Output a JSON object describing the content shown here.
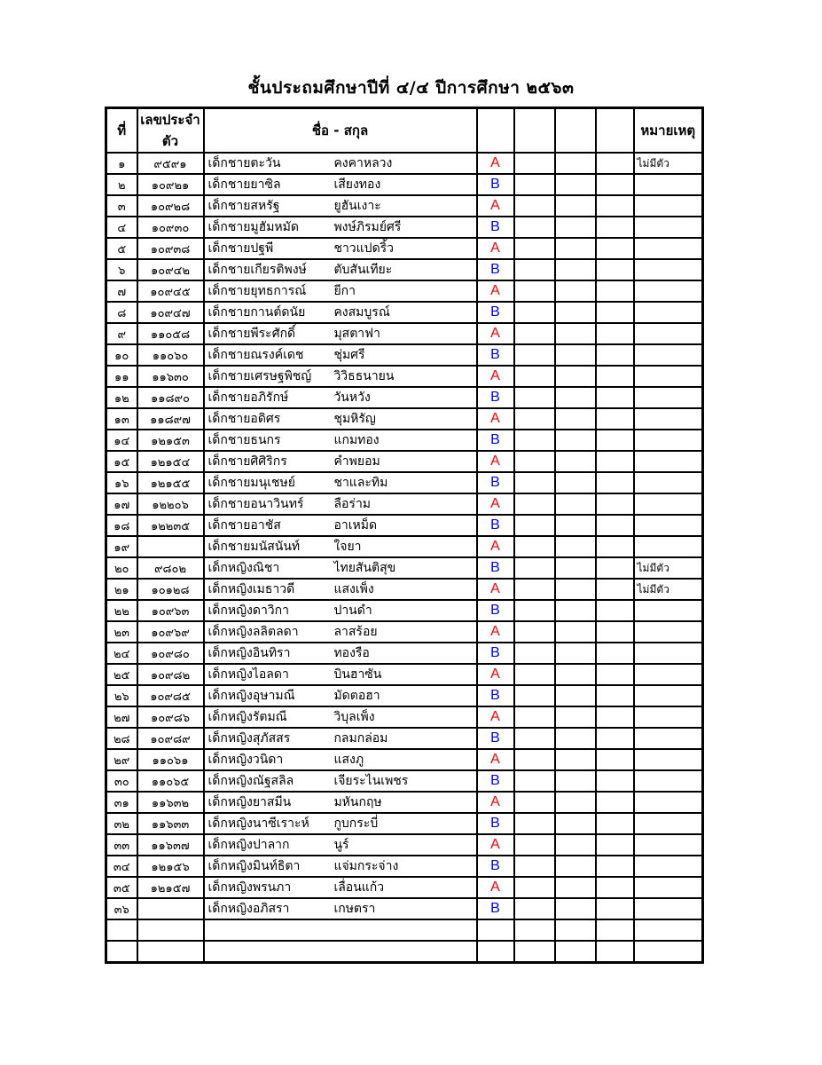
{
  "page": {
    "title": "ชั้นประถมศึกษาปีที่ ๔/๔  ปีการศึกษา  ๒๕๖๓"
  },
  "colors": {
    "group_a": "#ff0000",
    "group_b": "#0000ff",
    "border": "#000000",
    "text": "#000000",
    "background": "#ffffff"
  },
  "table": {
    "headers": [
      "ที่",
      "เลขประจำตัว",
      "ชื่อ - สกุล",
      "",
      "",
      "",
      "",
      "หมายเหตุ"
    ],
    "empty_trailing_rows": 2,
    "rows": [
      {
        "no": "๑",
        "id": "๙๕๙๑",
        "first": "เด็กชายตะวัน",
        "last": "คงคาหลวง",
        "group": "A",
        "remark": "ไม่มีตัว"
      },
      {
        "no": "๒",
        "id": "๑๐๙๒๑",
        "first": "เด็กชายยาซิล",
        "last": "เสียงทอง",
        "group": "B",
        "remark": ""
      },
      {
        "no": "๓",
        "id": "๑๐๙๒๘",
        "first": "เด็กชายสหรัฐ",
        "last": "ยูฮันเงาะ",
        "group": "A",
        "remark": ""
      },
      {
        "no": "๔",
        "id": "๑๐๙๓๐",
        "first": "เด็กชายมูฮัมหมัด",
        "last": "พงษ์ภิรมย์ศรี",
        "group": "B",
        "remark": ""
      },
      {
        "no": "๕",
        "id": "๑๐๙๓๘",
        "first": "เด็กชายปฐพี",
        "last": "ชาวแปดริ้ว",
        "group": "A",
        "remark": ""
      },
      {
        "no": "๖",
        "id": "๑๐๙๔๒",
        "first": "เด็กชายเกียรติพงษ์",
        "last": "ตับสันเทียะ",
        "group": "B",
        "remark": ""
      },
      {
        "no": "๗",
        "id": "๑๐๙๔๕",
        "first": "เด็กชายยุทธการณ์",
        "last": "ยีกา",
        "group": "A",
        "remark": ""
      },
      {
        "no": "๘",
        "id": "๑๐๙๔๗",
        "first": "เด็กชายกานต์ดนัย",
        "last": "คงสมบูรณ์",
        "group": "B",
        "remark": ""
      },
      {
        "no": "๙",
        "id": "๑๑๐๕๘",
        "first": "เด็กชายพีระศักดิ์",
        "last": "มุสตาฟา",
        "group": "A",
        "remark": ""
      },
      {
        "no": "๑๐",
        "id": "๑๑๐๖๐",
        "first": "เด็กชายณรงค์เดช",
        "last": "ชุ่มศรี",
        "group": "B",
        "remark": ""
      },
      {
        "no": "๑๑",
        "id": "๑๑๖๓๐",
        "first": "เด็กชายเศรษฐพิชญ์",
        "last": "วิวิธธนายน",
        "group": "A",
        "remark": ""
      },
      {
        "no": "๑๒",
        "id": "๑๑๘๙๐",
        "first": "เด็กชายอภิรักษ์",
        "last": "วันหวัง",
        "group": "B",
        "remark": ""
      },
      {
        "no": "๑๓",
        "id": "๑๑๘๙๗",
        "first": "เด็กชายอดิศร",
        "last": "ชุมหิรัญ",
        "group": "A",
        "remark": ""
      },
      {
        "no": "๑๔",
        "id": "๑๒๑๕๓",
        "first": "เด็กชายธนกร",
        "last": "แกมทอง",
        "group": "B",
        "remark": ""
      },
      {
        "no": "๑๕",
        "id": "๑๒๑๕๔",
        "first": "เด็กชายศิศิริกร",
        "last": "คำพยอม",
        "group": "A",
        "remark": ""
      },
      {
        "no": "๑๖",
        "id": "๑๒๑๕๕",
        "first": "เด็กชายมนุเชษย์",
        "last": "ชาและทิม",
        "group": "B",
        "remark": ""
      },
      {
        "no": "๑๗",
        "id": "๑๒๒๐๖",
        "first": "เด็กชายอนาวินทร์",
        "last": "ลือร่าม",
        "group": "A",
        "remark": ""
      },
      {
        "no": "๑๘",
        "id": "๑๒๒๓๕",
        "first": "เด็กชายอาชัส",
        "last": "อาเหม็ด",
        "group": "B",
        "remark": ""
      },
      {
        "no": "๑๙",
        "id": "",
        "first": "เด็กชายมนัสนันท์",
        "last": "ใจยา",
        "group": "A",
        "remark": ""
      },
      {
        "no": "๒๐",
        "id": "๙๘๐๒",
        "first": "เด็กหญิงณิชา",
        "last": "ไทยสันติสุข",
        "group": "B",
        "remark": "ไม่มีตัว"
      },
      {
        "no": "๒๑",
        "id": "๑๐๑๒๘",
        "first": "เด็กหญิงเมธาวดี",
        "last": "แสงเพ็ง",
        "group": "A",
        "remark": "ไม่มีตัว"
      },
      {
        "no": "๒๒",
        "id": "๑๐๙๖๓",
        "first": "เด็กหญิงดาวิกา",
        "last": "ปานดำ",
        "group": "B",
        "remark": ""
      },
      {
        "no": "๒๓",
        "id": "๑๐๙๖๙",
        "first": "เด็กหญิงลลิตลดา",
        "last": "ลาสร้อย",
        "group": "A",
        "remark": ""
      },
      {
        "no": "๒๔",
        "id": "๑๐๙๘๐",
        "first": "เด็กหญิงอินทิรา",
        "last": "ทองรือ",
        "group": "B",
        "remark": ""
      },
      {
        "no": "๒๕",
        "id": "๑๐๙๘๒",
        "first": "เด็กหญิงไอลดา",
        "last": "บินฮาซัน",
        "group": "A",
        "remark": ""
      },
      {
        "no": "๒๖",
        "id": "๑๐๙๘๕",
        "first": "เด็กหญิงอุษามณี",
        "last": "มัดตอฮา",
        "group": "B",
        "remark": ""
      },
      {
        "no": "๒๗",
        "id": "๑๐๙๘๖",
        "first": "เด็กหญิงรัตมณี",
        "last": "วิบุลเพ็ง",
        "group": "A",
        "remark": ""
      },
      {
        "no": "๒๘",
        "id": "๑๐๙๘๙",
        "first": "เด็กหญิงสุภัสสร",
        "last": "กลมกล่อม",
        "group": "B",
        "remark": ""
      },
      {
        "no": "๒๙",
        "id": "๑๑๐๖๑",
        "first": "เด็กหญิงวนิดา",
        "last": "แสงภู",
        "group": "A",
        "remark": ""
      },
      {
        "no": "๓๐",
        "id": "๑๑๐๖๕",
        "first": "เด็กหญิงณัฐสลิล",
        "last": "เจียระไนเพชร",
        "group": "B",
        "remark": ""
      },
      {
        "no": "๓๑",
        "id": "๑๑๖๓๒",
        "first": "เด็กหญิงยาสมีน",
        "last": "มหันกฤษ",
        "group": "A",
        "remark": ""
      },
      {
        "no": "๓๒",
        "id": "๑๑๖๓๓",
        "first": "เด็กหญิงนาซีเราะห์",
        "last": "กูบกระบี่",
        "group": "B",
        "remark": ""
      },
      {
        "no": "๓๓",
        "id": "๑๑๖๓๗",
        "first": "เด็กหญิงปาลาก",
        "last": "นูร์",
        "group": "A",
        "remark": ""
      },
      {
        "no": "๓๔",
        "id": "๑๒๑๕๖",
        "first": "เด็กหญิงมินท์ธิตา",
        "last": "แจ่มกระจ่าง",
        "group": "B",
        "remark": ""
      },
      {
        "no": "๓๕",
        "id": "๑๒๑๕๗",
        "first": "เด็กหญิงพรนภา",
        "last": "เลื่อนแก้ว",
        "group": "A",
        "remark": ""
      },
      {
        "no": "๓๖",
        "id": "",
        "first": "เด็กหญิงอภิสรา",
        "last": "เกษตรา",
        "group": "B",
        "remark": ""
      }
    ]
  }
}
